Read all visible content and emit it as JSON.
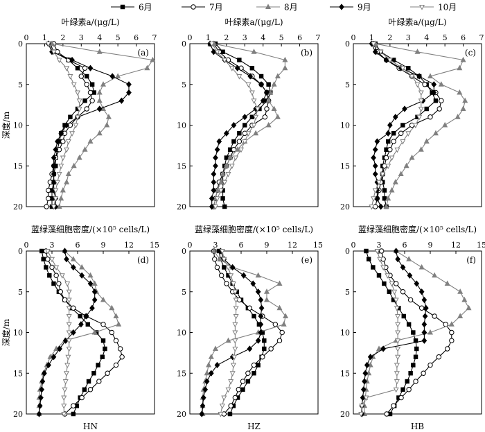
{
  "legend": {
    "entries": [
      {
        "label": "6月",
        "color": "#000000",
        "marker": "square",
        "fill": true
      },
      {
        "label": "7月",
        "color": "#000000",
        "marker": "circle",
        "fill": false
      },
      {
        "label": "8月",
        "color": "#808080",
        "marker": "triangle-up",
        "fill": true
      },
      {
        "label": "9月",
        "color": "#000000",
        "marker": "diamond",
        "fill": true
      },
      {
        "label": "10月",
        "color": "#808080",
        "marker": "triangle-down",
        "fill": false
      }
    ]
  },
  "chart_data": [
    {
      "type": "line",
      "panel": "a",
      "site": "",
      "xlabel": "叶绿素a/(μg/L)",
      "ylabel": "深度/m",
      "xlim": [
        0,
        7
      ],
      "ylim": [
        0,
        20
      ],
      "xticks": [
        "0",
        "1",
        "2",
        "3",
        "4",
        "5",
        "6",
        "7"
      ],
      "yticks": [
        "0",
        "5",
        "10",
        "15",
        "20"
      ],
      "y": [
        0,
        1,
        2,
        3,
        4,
        5,
        6,
        7,
        8,
        9,
        10,
        11,
        12,
        13,
        14,
        15,
        16,
        17,
        18,
        19,
        20
      ],
      "series": [
        {
          "name": "6月",
          "values": [
            1.3,
            1.5,
            2.3,
            2.8,
            3.3,
            3.6,
            3.7,
            3.2,
            2.8,
            2.4,
            2.1,
            1.9,
            1.8,
            1.7,
            1.6,
            1.6,
            1.5,
            1.5,
            1.4,
            1.4,
            1.4
          ]
        },
        {
          "name": "7月",
          "values": [
            1.5,
            1.7,
            2.3,
            3.2,
            3.0,
            3.3,
            3.5,
            3.6,
            3.3,
            2.8,
            2.4,
            2.1,
            2.0,
            1.8,
            1.6,
            1.5,
            1.4,
            1.3,
            1.2,
            1.2,
            1.1
          ]
        },
        {
          "name": "8月",
          "values": [
            1.4,
            4.0,
            6.9,
            6.6,
            5.0,
            4.2,
            4.0,
            4.0,
            4.2,
            4.5,
            4.4,
            4.0,
            3.5,
            3.2,
            2.9,
            2.6,
            2.3,
            2.2,
            2.0,
            1.9,
            1.8
          ]
        },
        {
          "name": "9月",
          "values": [
            1.2,
            1.4,
            2.5,
            3.5,
            4.7,
            5.6,
            5.6,
            5.2,
            4.0,
            2.8,
            2.2,
            1.9,
            1.7,
            1.6,
            1.5,
            1.5,
            1.5,
            1.5,
            1.5,
            1.6,
            1.6
          ]
        },
        {
          "name": "10月",
          "values": [
            1.2,
            1.5,
            1.8,
            2.2,
            2.4,
            2.6,
            2.8,
            2.9,
            2.9,
            2.8,
            2.7,
            2.5,
            2.3,
            2.2,
            2.0,
            1.9,
            1.8,
            1.7,
            1.6,
            1.6,
            1.5
          ]
        }
      ]
    },
    {
      "type": "line",
      "panel": "b",
      "site": "",
      "xlabel": "叶绿素a/(μg/L)",
      "ylabel": "",
      "xlim": [
        0,
        7
      ],
      "ylim": [
        0,
        20
      ],
      "xticks": [
        "0",
        "1",
        "2",
        "3",
        "4",
        "5",
        "6",
        "7"
      ],
      "yticks": [
        "0",
        "5",
        "10",
        "15",
        "20"
      ],
      "y": [
        0,
        1,
        2,
        3,
        4,
        5,
        6,
        7,
        8,
        9,
        10,
        11,
        12,
        13,
        14,
        15,
        16,
        17,
        18,
        19,
        20
      ],
      "series": [
        {
          "name": "6月",
          "values": [
            1.4,
            1.8,
            2.7,
            3.4,
            3.9,
            4.3,
            4.4,
            4.2,
            3.8,
            3.4,
            3.0,
            2.7,
            2.4,
            2.2,
            2.0,
            1.9,
            1.8,
            1.8,
            1.8,
            1.8,
            1.9
          ]
        },
        {
          "name": "7月",
          "values": [
            1.3,
            1.6,
            2.1,
            2.8,
            3.4,
            3.9,
            4.2,
            4.3,
            4.2,
            4.1,
            3.4,
            3.0,
            2.7,
            2.4,
            2.2,
            2.0,
            1.8,
            1.6,
            1.5,
            1.4,
            1.3
          ]
        },
        {
          "name": "8月",
          "values": [
            1.3,
            3.5,
            5.2,
            5.2,
            4.8,
            4.6,
            4.4,
            4.3,
            4.6,
            4.8,
            4.3,
            3.6,
            3.0,
            2.6,
            2.2,
            2.0,
            1.8,
            1.7,
            1.5,
            1.4,
            1.3
          ]
        },
        {
          "name": "9月",
          "values": [
            1.1,
            1.3,
            1.9,
            2.6,
            3.3,
            3.9,
            4.2,
            4.0,
            3.6,
            3.0,
            2.4,
            2.0,
            1.6,
            1.5,
            1.4,
            1.4,
            1.3,
            1.3,
            1.3,
            1.2,
            1.2
          ]
        },
        {
          "name": "10月",
          "values": [
            1.2,
            1.5,
            1.9,
            2.3,
            2.7,
            3.2,
            3.4,
            3.5,
            3.7,
            3.6,
            3.5,
            3.2,
            3.0,
            2.8,
            2.5,
            2.3,
            2.1,
            1.9,
            1.7,
            1.5,
            1.4
          ]
        }
      ]
    },
    {
      "type": "line",
      "panel": "c",
      "site": "",
      "xlabel": "叶绿素a/(μg/L)",
      "ylabel": "",
      "xlim": [
        0,
        7
      ],
      "ylim": [
        0,
        20
      ],
      "xticks": [
        "0",
        "1",
        "2",
        "3",
        "4",
        "5",
        "6",
        "7"
      ],
      "yticks": [
        "0",
        "5",
        "10",
        "15",
        "20"
      ],
      "y": [
        0,
        1,
        2,
        3,
        4,
        5,
        6,
        7,
        8,
        9,
        10,
        11,
        12,
        13,
        14,
        15,
        16,
        17,
        18,
        19,
        20
      ],
      "series": [
        {
          "name": "6月",
          "values": [
            1.2,
            1.5,
            2.2,
            3.0,
            3.6,
            4.0,
            4.3,
            4.5,
            4.0,
            3.5,
            2.7,
            2.2,
            1.9,
            1.8,
            1.7,
            1.6,
            1.6,
            1.6,
            1.7,
            1.7,
            1.8
          ]
        },
        {
          "name": "7月",
          "values": [
            1.1,
            1.3,
            1.8,
            2.5,
            3.2,
            3.9,
            4.5,
            4.8,
            4.7,
            4.2,
            3.2,
            2.6,
            2.2,
            2.0,
            1.8,
            1.7,
            1.6,
            1.5,
            1.4,
            1.3,
            1.2
          ]
        },
        {
          "name": "8月",
          "values": [
            1.2,
            3.5,
            6.0,
            5.8,
            4.2,
            4.8,
            5.8,
            6.1,
            6.0,
            5.7,
            5.0,
            4.5,
            4.0,
            3.7,
            3.2,
            2.9,
            2.6,
            2.3,
            2.1,
            1.9,
            1.8
          ]
        },
        {
          "name": "9月",
          "values": [
            1.0,
            1.2,
            1.8,
            2.6,
            3.6,
            4.4,
            4.4,
            3.8,
            2.8,
            2.3,
            2.0,
            1.9,
            1.3,
            1.2,
            1.1,
            1.2,
            1.2,
            1.3,
            1.3,
            1.3,
            1.5
          ]
        },
        {
          "name": "10月",
          "values": [
            1.1,
            1.5,
            2.0,
            2.7,
            3.2,
            3.5,
            3.7,
            3.7,
            3.7,
            3.6,
            3.4,
            3.0,
            2.7,
            2.4,
            2.1,
            1.9,
            1.6,
            1.4,
            1.2,
            1.1,
            1.0
          ]
        }
      ]
    },
    {
      "type": "line",
      "panel": "d",
      "site": "HN",
      "xlabel": "蓝绿藻细胞密度/(×10⁵ cells/L)",
      "ylabel": "深度/m",
      "xlim": [
        0,
        15
      ],
      "ylim": [
        0,
        20
      ],
      "xticks": [
        "0",
        "3",
        "6",
        "9",
        "12",
        "15"
      ],
      "yticks": [
        "0",
        "5",
        "10",
        "15",
        "20"
      ],
      "y": [
        0,
        1,
        2,
        3,
        4,
        5,
        6,
        7,
        8,
        9,
        10,
        11,
        12,
        13,
        14,
        15,
        16,
        17,
        18,
        19,
        20
      ],
      "series": [
        {
          "name": "6月",
          "values": [
            1.8,
            2.0,
            2.3,
            2.7,
            3.2,
            3.8,
            4.5,
            5.3,
            6.3,
            7.2,
            8.2,
            9.0,
            9.2,
            8.9,
            8.4,
            7.9,
            7.3,
            6.8,
            6.3,
            5.9,
            5.5
          ]
        },
        {
          "name": "7月",
          "values": [
            2.3,
            2.5,
            3.0,
            3.5,
            3.8,
            4.0,
            4.5,
            5.5,
            7.0,
            9.0,
            10.0,
            10.5,
            11.0,
            11.2,
            10.5,
            9.5,
            8.5,
            7.5,
            6.5,
            5.5,
            4.5
          ]
        },
        {
          "name": "8月",
          "values": [
            4.5,
            5.5,
            6.5,
            7.5,
            8.0,
            8.2,
            9.0,
            10.0,
            10.5,
            10.8,
            8.0,
            4.5,
            3.5,
            2.8,
            2.4,
            2.0,
            1.8,
            1.6,
            1.5,
            1.5,
            1.5
          ]
        },
        {
          "name": "9月",
          "values": [
            4.5,
            4.7,
            5.5,
            6.5,
            7.5,
            8.0,
            8.0,
            7.7,
            7.0,
            6.4,
            5.5,
            4.6,
            3.9,
            3.2,
            2.6,
            2.1,
            1.9,
            1.8,
            1.7,
            1.6,
            1.5
          ]
        },
        {
          "name": "10月",
          "values": [
            2.5,
            3.0,
            3.5,
            4.2,
            4.8,
            5.0,
            5.0,
            5.0,
            5.0,
            5.0,
            5.0,
            5.0,
            5.0,
            4.9,
            4.8,
            4.7,
            4.6,
            4.5,
            4.4,
            4.4,
            4.4
          ]
        }
      ]
    },
    {
      "type": "line",
      "panel": "e",
      "site": "HZ",
      "xlabel": "蓝绿藻细胞密度/(×10⁵ cells/L)",
      "ylabel": "",
      "xlim": [
        0,
        15
      ],
      "ylim": [
        0,
        20
      ],
      "xticks": [
        "0",
        "3",
        "6",
        "9",
        "12",
        "15"
      ],
      "yticks": [
        "0",
        "5",
        "10",
        "15",
        "20"
      ],
      "y": [
        0,
        1,
        2,
        3,
        4,
        5,
        6,
        7,
        8,
        9,
        10,
        11,
        12,
        13,
        14,
        15,
        16,
        17,
        18,
        19,
        20
      ],
      "series": [
        {
          "name": "6月",
          "values": [
            3.4,
            3.6,
            4.0,
            4.5,
            5.0,
            5.5,
            6.0,
            6.8,
            7.5,
            8.1,
            8.5,
            8.7,
            8.7,
            8.4,
            8.0,
            7.5,
            6.8,
            6.2,
            5.6,
            5.1,
            4.7
          ]
        },
        {
          "name": "7月",
          "values": [
            2.8,
            2.9,
            3.2,
            3.7,
            4.3,
            5.0,
            5.8,
            7.0,
            8.5,
            10.0,
            10.8,
            10.5,
            9.5,
            8.5,
            7.5,
            6.8,
            6.2,
            5.7,
            5.3,
            4.8,
            4.0
          ]
        },
        {
          "name": "8月",
          "values": [
            2.8,
            3.5,
            5.0,
            8.0,
            10.5,
            9.0,
            9.0,
            10.5,
            11.2,
            11.0,
            8.0,
            4.5,
            3.0,
            2.5,
            2.2,
            2.0,
            1.8,
            1.6,
            1.5,
            1.5,
            1.5
          ]
        },
        {
          "name": "9月",
          "values": [
            3.6,
            4.0,
            5.0,
            6.3,
            7.4,
            8.0,
            8.3,
            8.4,
            8.3,
            8.3,
            8.3,
            8.0,
            7.0,
            5.0,
            3.2,
            2.5,
            2.0,
            1.8,
            1.6,
            1.5,
            1.4
          ]
        },
        {
          "name": "10月",
          "values": [
            3.8,
            4.0,
            4.5,
            4.8,
            5.1,
            5.3,
            5.4,
            5.4,
            5.4,
            5.3,
            5.3,
            5.3,
            5.3,
            5.2,
            5.1,
            5.0,
            4.8,
            4.5,
            4.0,
            3.8,
            3.6
          ]
        }
      ]
    },
    {
      "type": "line",
      "panel": "f",
      "site": "HB",
      "xlabel": "蓝绿藻细胞密度/(×10⁵ cells/L)",
      "ylabel": "",
      "xlim": [
        0,
        15
      ],
      "ylim": [
        0,
        20
      ],
      "xticks": [
        "0",
        "3",
        "6",
        "9",
        "12",
        "15"
      ],
      "yticks": [
        "0",
        "5",
        "10",
        "15",
        "20"
      ],
      "y": [
        0,
        1,
        2,
        3,
        4,
        5,
        6,
        7,
        8,
        9,
        10,
        11,
        12,
        13,
        14,
        15,
        16,
        17,
        18,
        19,
        20
      ],
      "series": [
        {
          "name": "6月",
          "values": [
            1.5,
            1.8,
            2.3,
            3.0,
            3.6,
            4.2,
            4.7,
            5.3,
            5.9,
            6.5,
            7.0,
            7.3,
            7.4,
            7.3,
            7.0,
            6.7,
            6.3,
            5.8,
            5.3,
            4.8,
            4.3
          ]
        },
        {
          "name": "7月",
          "values": [
            3.3,
            3.5,
            3.8,
            4.3,
            5.0,
            5.8,
            6.7,
            8.0,
            9.5,
            10.8,
            11.5,
            11.5,
            11.0,
            10.0,
            9.0,
            8.2,
            7.3,
            6.5,
            5.6,
            4.7,
            3.9
          ]
        },
        {
          "name": "8月",
          "values": [
            5.0,
            6.5,
            8.0,
            9.5,
            11.0,
            12.5,
            13.0,
            13.5,
            12.5,
            11.5,
            9.0,
            5.0,
            3.0,
            2.3,
            2.0,
            1.8,
            1.6,
            1.5,
            1.4,
            1.3,
            1.3
          ]
        },
        {
          "name": "9月",
          "values": [
            5.0,
            5.2,
            5.8,
            6.6,
            7.4,
            8.0,
            8.3,
            8.5,
            8.4,
            8.3,
            8.3,
            8.3,
            3.5,
            2.0,
            1.6,
            1.4,
            1.3,
            1.2,
            1.1,
            1.0,
            1.0
          ]
        },
        {
          "name": "10月",
          "values": [
            2.8,
            3.1,
            3.5,
            4.0,
            4.5,
            4.8,
            5.0,
            5.1,
            5.2,
            5.2,
            5.2,
            5.2,
            5.2,
            5.2,
            5.1,
            5.1,
            5.1,
            5.0,
            1.5,
            1.0,
            0.9
          ]
        }
      ]
    }
  ]
}
